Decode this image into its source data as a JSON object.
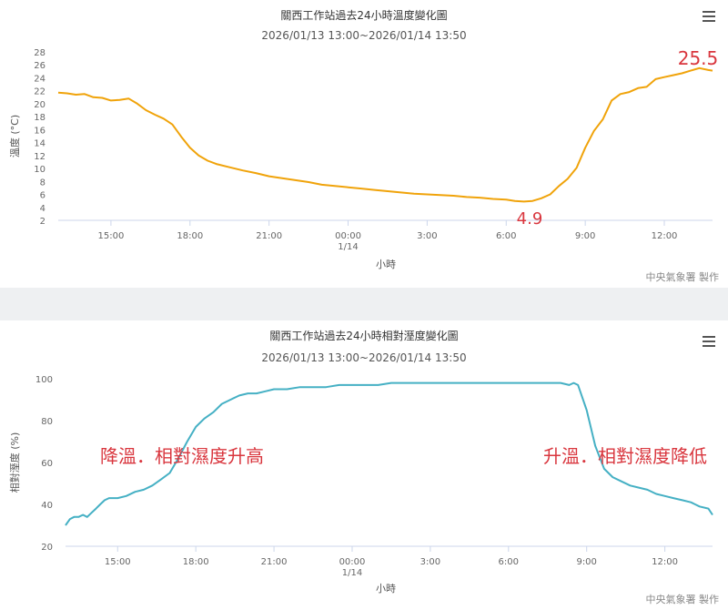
{
  "charts": {
    "temp": {
      "title": "關西工作站過去24小時溫度變化圖",
      "subtitle": "2026/01/13 13:00~2026/01/14 13:50",
      "ylabel": "溫度 (°C)",
      "xlabel": "小時",
      "credit": "中央氣象署 製作",
      "annotation_min": "4.9",
      "annotation_max": "25.5",
      "line_color": "#f0a30a",
      "annotation_color": "#d9363e"
    },
    "hum": {
      "title": "關西工作站過去24小時相對溼度變化圖",
      "subtitle": "2026/01/13 13:00~2026/01/14 13:50",
      "ylabel": "相對溼度 (%)",
      "xlabel": "小時",
      "credit": "中央氣象署 製作",
      "annotation_left": "降溫．相對濕度升高",
      "annotation_right": "升溫．相對濕度降低",
      "line_color": "#45b0c4",
      "annotation_color": "#d9363e"
    }
  },
  "chart_data": [
    {
      "type": "line",
      "title": "關西工作站過去24小時溫度變化圖",
      "subtitle": "2026/01/13 13:00~2026/01/14 13:50",
      "xlabel": "小時",
      "ylabel": "溫度 (°C)",
      "ylim": [
        2,
        28
      ],
      "yticks": [
        2,
        4,
        6,
        8,
        10,
        12,
        14,
        16,
        18,
        20,
        22,
        24,
        26,
        28
      ],
      "xlim": [
        0,
        24.83
      ],
      "xticks": [
        {
          "x": 2,
          "label": "15:00"
        },
        {
          "x": 5,
          "label": "18:00"
        },
        {
          "x": 8,
          "label": "21:00"
        },
        {
          "x": 11,
          "label": "00:00",
          "sublabel": "1/14"
        },
        {
          "x": 14,
          "label": "3:00"
        },
        {
          "x": 17,
          "label": "6:00"
        },
        {
          "x": 20,
          "label": "9:00"
        },
        {
          "x": 23,
          "label": "12:00"
        }
      ],
      "grid": false,
      "series": [
        {
          "x": [
            0,
            0.33,
            0.67,
            1.0,
            1.33,
            1.67,
            2.0,
            2.33,
            2.67,
            3.0,
            3.33,
            3.67,
            4.0,
            4.33,
            4.67,
            5.0,
            5.33,
            5.67,
            6.0,
            6.5,
            7.0,
            7.5,
            8.0,
            8.5,
            9.0,
            9.5,
            10.0,
            10.5,
            11.0,
            11.5,
            12.0,
            12.5,
            13.0,
            13.5,
            14.0,
            14.5,
            15.0,
            15.5,
            16.0,
            16.5,
            17.0,
            17.33,
            17.67,
            18.0,
            18.33,
            18.67,
            19.0,
            19.33,
            19.67,
            20.0,
            20.33,
            20.67,
            21.0,
            21.33,
            21.67,
            22.0,
            22.33,
            22.67,
            23.0,
            23.33,
            23.67,
            24.0,
            24.33,
            24.67,
            24.83
          ],
          "values": [
            21.7,
            21.6,
            21.4,
            21.5,
            21.0,
            20.9,
            20.5,
            20.6,
            20.8,
            20.0,
            19.0,
            18.3,
            17.7,
            16.8,
            14.9,
            13.2,
            12.0,
            11.2,
            10.7,
            10.2,
            9.7,
            9.3,
            8.8,
            8.5,
            8.2,
            7.9,
            7.5,
            7.3,
            7.1,
            6.9,
            6.7,
            6.5,
            6.3,
            6.1,
            6.0,
            5.9,
            5.8,
            5.6,
            5.5,
            5.3,
            5.2,
            5.0,
            4.9,
            5.0,
            5.4,
            6.0,
            7.3,
            8.4,
            10.1,
            13.2,
            15.8,
            17.6,
            20.5,
            21.5,
            21.8,
            22.4,
            22.6,
            23.8,
            24.1,
            24.4,
            24.7,
            25.1,
            25.5,
            25.2,
            25.1
          ]
        }
      ],
      "annotations": [
        "4.9",
        "25.5"
      ]
    },
    {
      "type": "line",
      "title": "關西工作站過去24小時相對溼度變化圖",
      "subtitle": "2026/01/13 13:00~2026/01/14 13:50",
      "xlabel": "小時",
      "ylabel": "相對溼度 (%)",
      "ylim": [
        20,
        100
      ],
      "yticks": [
        20,
        40,
        60,
        80,
        100
      ],
      "xlim": [
        0,
        24.83
      ],
      "xticks": [
        {
          "x": 2,
          "label": "15:00"
        },
        {
          "x": 5,
          "label": "18:00"
        },
        {
          "x": 8,
          "label": "21:00"
        },
        {
          "x": 11,
          "label": "00:00",
          "sublabel": "1/14"
        },
        {
          "x": 14,
          "label": "3:00"
        },
        {
          "x": 17,
          "label": "6:00"
        },
        {
          "x": 20,
          "label": "9:00"
        },
        {
          "x": 23,
          "label": "12:00"
        }
      ],
      "grid": false,
      "series": [
        {
          "x": [
            0,
            0.17,
            0.33,
            0.5,
            0.67,
            0.83,
            1.0,
            1.17,
            1.33,
            1.5,
            1.67,
            1.83,
            2.0,
            2.33,
            2.67,
            3.0,
            3.33,
            3.67,
            4.0,
            4.33,
            4.67,
            5.0,
            5.33,
            5.67,
            6.0,
            6.33,
            6.67,
            7.0,
            7.33,
            7.67,
            8.0,
            8.5,
            9.0,
            9.5,
            10.0,
            10.5,
            11.0,
            11.5,
            12.0,
            12.5,
            13.0,
            13.5,
            14.0,
            15.0,
            16.0,
            17.0,
            18.0,
            19.0,
            19.33,
            19.5,
            19.67,
            20.0,
            20.33,
            20.67,
            21.0,
            21.33,
            21.67,
            22.0,
            22.33,
            22.67,
            23.0,
            23.33,
            23.67,
            24.0,
            24.33,
            24.67,
            24.83
          ],
          "values": [
            30,
            33,
            34,
            34,
            35,
            34,
            36,
            38,
            40,
            42,
            43,
            43,
            43,
            44,
            46,
            47,
            49,
            52,
            55,
            62,
            70,
            77,
            81,
            84,
            88,
            90,
            92,
            93,
            93,
            94,
            95,
            95,
            96,
            96,
            96,
            97,
            97,
            97,
            97,
            98,
            98,
            98,
            98,
            98,
            98,
            98,
            98,
            98,
            97,
            98,
            97,
            85,
            68,
            57,
            53,
            51,
            49,
            48,
            47,
            45,
            44,
            43,
            42,
            41,
            39,
            38,
            35
          ]
        }
      ],
      "annotations": [
        "降溫．相對濕度升高",
        "升溫．相對濕度降低"
      ]
    }
  ]
}
